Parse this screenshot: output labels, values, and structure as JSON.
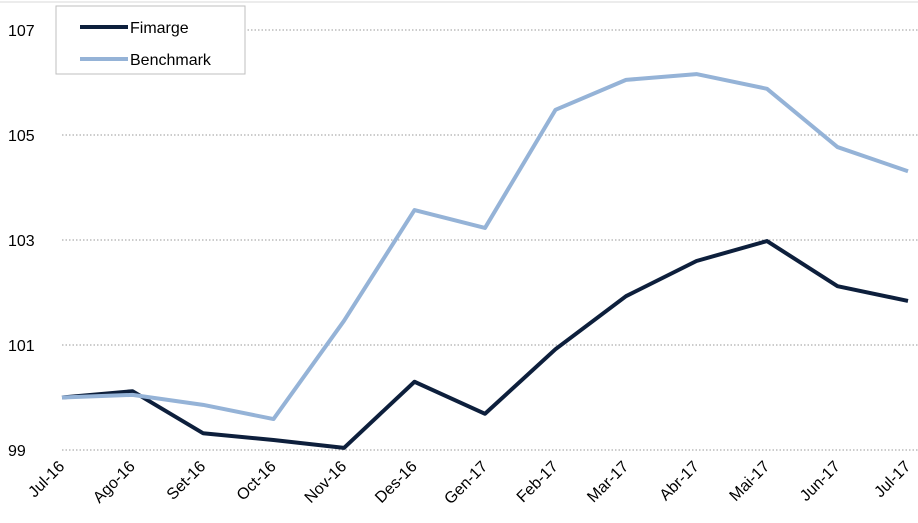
{
  "chart_data": {
    "type": "line",
    "categories": [
      "Jul-16",
      "Ago-16",
      "Set-16",
      "Oct-16",
      "Nov-16",
      "Des-16",
      "Gen-17",
      "Feb-17",
      "Mar-17",
      "Abr-17",
      "Mai-17",
      "Jun-17",
      "Jul-17"
    ],
    "series": [
      {
        "name": "Fimarge",
        "color": "#0d1f3c",
        "values": [
          100.0,
          100.12,
          99.32,
          99.19,
          99.04,
          100.3,
          99.69,
          100.92,
          101.93,
          102.6,
          102.98,
          102.12,
          101.84
        ]
      },
      {
        "name": "Benchmark",
        "color": "#95b3d7",
        "values": [
          100.0,
          100.05,
          99.86,
          99.59,
          101.46,
          103.57,
          103.23,
          105.48,
          106.05,
          106.16,
          105.88,
          104.77,
          104.31
        ]
      }
    ],
    "ylim": [
      99,
      107
    ],
    "yticks": [
      99,
      101,
      103,
      105,
      107
    ],
    "grid": true,
    "legend": "upper-left"
  }
}
